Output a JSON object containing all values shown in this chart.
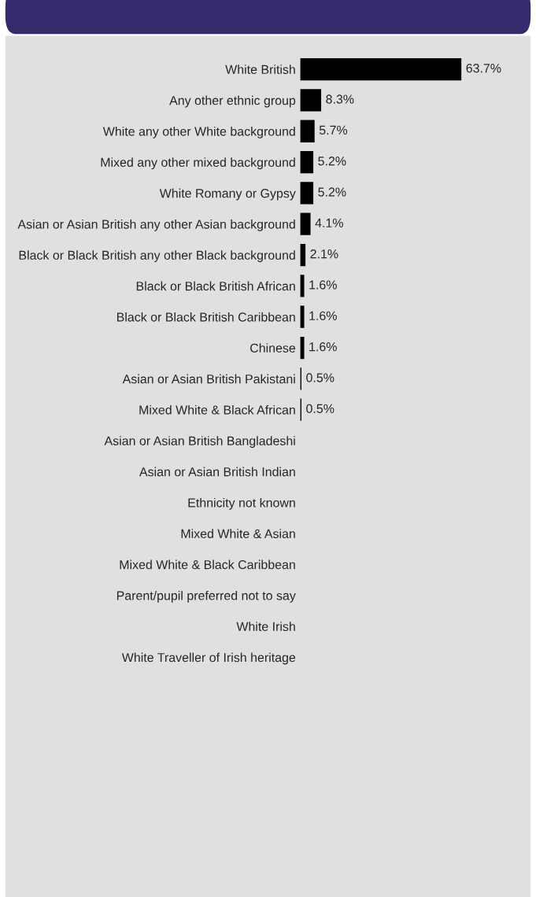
{
  "chart_data": {
    "type": "bar",
    "orientation": "horizontal",
    "color": "#000000",
    "categories": [
      "White British",
      "Any other ethnic group",
      "White any other White background",
      "Mixed any other mixed background",
      "White Romany or Gypsy",
      "Asian or Asian British any other Asian background",
      "Black or Black British any other Black background",
      "Black or Black British African",
      "Black or Black British Caribbean",
      "Chinese",
      "Asian or Asian British Pakistani",
      "Mixed White & Black African",
      "Asian or Asian British Bangladeshi",
      "Asian or Asian British Indian",
      "Ethnicity not known",
      "Mixed White & Asian",
      "Mixed White & Black Caribbean",
      "Parent/pupil preferred not to say",
      "White Irish",
      "White Traveller of Irish heritage"
    ],
    "values": [
      63.7,
      8.3,
      5.7,
      5.2,
      5.2,
      4.1,
      2.1,
      1.6,
      1.6,
      1.6,
      0.5,
      0.5,
      0,
      0,
      0,
      0,
      0,
      0,
      0,
      0
    ],
    "value_labels": [
      "63.7%",
      "8.3%",
      "5.7%",
      "5.2%",
      "5.2%",
      "4.1%",
      "2.1%",
      "1.6%",
      "1.6%",
      "1.6%",
      "0.5%",
      "0.5%",
      null,
      null,
      null,
      null,
      null,
      null,
      null,
      null
    ]
  }
}
